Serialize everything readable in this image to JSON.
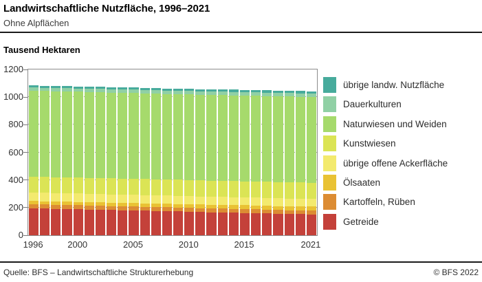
{
  "header": {
    "title": "Landwirtschaftliche Nutzfläche, 1996–2021",
    "subtitle": "Ohne Alpflächen"
  },
  "axis_title": "Tausend Hektaren",
  "footer": {
    "source": "Quelle: BFS – Landwirtschaftliche Strukturerhebung",
    "copyright": "© BFS 2022"
  },
  "chart_data": {
    "type": "bar",
    "stacked": true,
    "title": "Landwirtschaftliche Nutzfläche, 1996–2021",
    "subtitle": "Ohne Alpflächen",
    "ylabel": "Tausend Hektaren",
    "xlabel": "",
    "ylim": [
      0,
      1200
    ],
    "yticks": [
      0,
      200,
      400,
      600,
      800,
      1000,
      1200
    ],
    "grid": "horizontal-dotted",
    "legend_position": "right",
    "x": [
      1996,
      1997,
      1998,
      1999,
      2000,
      2001,
      2002,
      2003,
      2004,
      2005,
      2006,
      2007,
      2008,
      2009,
      2010,
      2011,
      2012,
      2013,
      2014,
      2015,
      2016,
      2017,
      2018,
      2019,
      2020,
      2021
    ],
    "xtick_labels": [
      "1996",
      "2000",
      "2005",
      "2010",
      "2015",
      "2021"
    ],
    "stack_order": "bottom-to-top",
    "series": [
      {
        "name": "Getreide",
        "color": "#C4413A",
        "values": [
          195,
          193,
          191,
          190,
          188,
          186,
          184,
          182,
          181,
          179,
          177,
          175,
          173,
          172,
          170,
          168,
          166,
          164,
          163,
          161,
          159,
          157,
          155,
          154,
          152,
          150
        ]
      },
      {
        "name": "Kartoffeln, Rüben",
        "color": "#DC8C33",
        "values": [
          30,
          30,
          30,
          30,
          30,
          29,
          29,
          29,
          29,
          29,
          29,
          29,
          29,
          28,
          28,
          28,
          28,
          28,
          28,
          28,
          28,
          27,
          27,
          27,
          27,
          27
        ]
      },
      {
        "name": "Ölsaaten",
        "color": "#E9C234",
        "values": [
          22,
          22,
          23,
          23,
          23,
          24,
          24,
          24,
          25,
          25,
          25,
          26,
          26,
          26,
          26,
          27,
          27,
          27,
          28,
          28,
          28,
          29,
          29,
          29,
          30,
          30
        ]
      },
      {
        "name": "übrige offene Ackerfläche",
        "color": "#F3EA6E",
        "values": [
          63,
          63,
          62,
          62,
          62,
          61,
          61,
          61,
          60,
          60,
          60,
          59,
          59,
          59,
          59,
          58,
          58,
          58,
          57,
          57,
          57,
          56,
          56,
          56,
          55,
          55
        ]
      },
      {
        "name": "Kunstwiesen",
        "color": "#DBE455",
        "values": [
          115,
          115,
          115,
          115,
          115,
          116,
          116,
          116,
          116,
          116,
          116,
          116,
          116,
          117,
          117,
          117,
          117,
          117,
          117,
          117,
          117,
          118,
          118,
          118,
          118,
          118
        ]
      },
      {
        "name": "Naturwiesen und Weiden",
        "color": "#A6DA6C",
        "values": [
          622,
          622,
          622,
          621,
          621,
          621,
          621,
          621,
          621,
          621,
          620,
          620,
          620,
          620,
          620,
          620,
          620,
          620,
          620,
          620,
          620,
          620,
          620,
          620,
          620,
          620
        ]
      },
      {
        "name": "Dauerkulturen",
        "color": "#90D0A5",
        "values": [
          23,
          23,
          23,
          23,
          23,
          23,
          24,
          24,
          24,
          24,
          24,
          24,
          24,
          24,
          24,
          24,
          24,
          25,
          25,
          25,
          25,
          25,
          25,
          25,
          25,
          25
        ]
      },
      {
        "name": "übrige landw. Nutzfläche",
        "color": "#47AB9C",
        "values": [
          15,
          15,
          15,
          15,
          15,
          15,
          15,
          16,
          16,
          16,
          16,
          16,
          16,
          16,
          16,
          16,
          16,
          16,
          16,
          17,
          17,
          17,
          17,
          17,
          17,
          17
        ]
      }
    ]
  }
}
